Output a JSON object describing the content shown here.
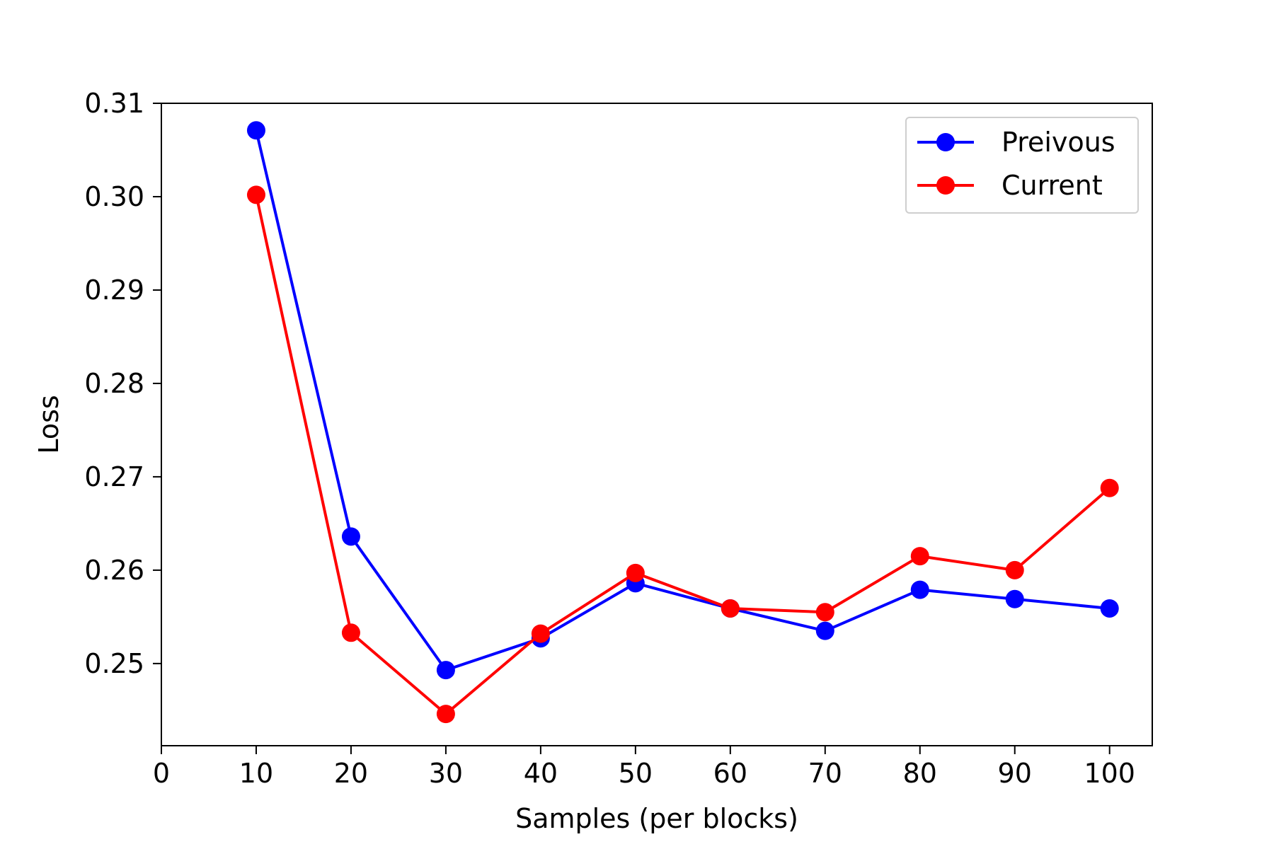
{
  "chart_data": {
    "type": "line",
    "title": "",
    "xlabel": "Samples (per blocks)",
    "ylabel": "Loss",
    "xlim": [
      0,
      104.5
    ],
    "ylim": [
      0.2412,
      0.31
    ],
    "x_ticks": [
      0,
      10,
      20,
      30,
      40,
      50,
      60,
      70,
      80,
      90,
      100
    ],
    "y_ticks": [
      0.25,
      0.26,
      0.27,
      0.28,
      0.29,
      0.3,
      0.31
    ],
    "y_tick_labels": [
      "0.25",
      "0.26",
      "0.27",
      "0.28",
      "0.29",
      "0.30",
      "0.31"
    ],
    "grid": false,
    "legend_position": "top-right",
    "x": [
      10,
      20,
      30,
      40,
      50,
      60,
      70,
      80,
      90,
      100
    ],
    "series": [
      {
        "name": "Preivous",
        "color": "#0000ff",
        "values": [
          0.3071,
          0.2636,
          0.2493,
          0.2527,
          0.2586,
          0.2559,
          0.2535,
          0.2579,
          0.2569,
          0.2559
        ]
      },
      {
        "name": "Current",
        "color": "#ff0000",
        "values": [
          0.3002,
          0.2533,
          0.2446,
          0.2532,
          0.2597,
          0.2559,
          0.2555,
          0.2615,
          0.26,
          0.2688
        ]
      }
    ]
  }
}
